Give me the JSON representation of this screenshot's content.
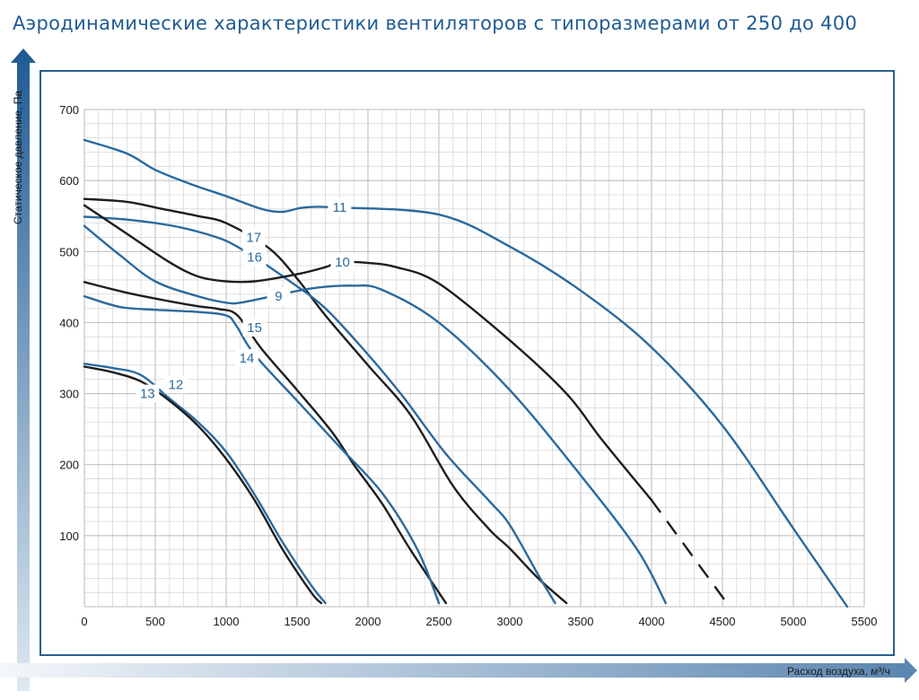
{
  "page": {
    "title": "Аэродинамические характеристики вентиляторов с типоразмерами от 250 до 400"
  },
  "chart_data": {
    "type": "line",
    "title": "Аэродинамические характеристики вентиляторов с типоразмерами от 250 до 400",
    "xlabel": "Расход воздуха, м³/ч",
    "ylabel": "Статическое давление, Па",
    "xlim": [
      0,
      5500
    ],
    "ylim": [
      0,
      700
    ],
    "x_ticks": [
      "0",
      "500",
      "1000",
      "1500",
      "2000",
      "2500",
      "3000",
      "3500",
      "4000",
      "4500",
      "5000",
      "5500"
    ],
    "y_ticks": [
      "100",
      "200",
      "300",
      "400",
      "500",
      "600",
      "700"
    ],
    "grid": true,
    "colors": {
      "blue": "#2a6a9e",
      "black": "#1e1e1e",
      "frame": "#2a5f8f"
    },
    "series": [
      {
        "name": "11",
        "color": "blue",
        "x": [
          0,
          300,
          500,
          750,
          1000,
          1250,
          1400,
          1550,
          1800,
          2500,
          3000,
          3500,
          4000,
          4500,
          5000,
          5380
        ],
        "y": [
          657,
          638,
          615,
          595,
          578,
          560,
          556,
          562,
          562,
          552,
          507,
          445,
          365,
          255,
          110,
          0
        ],
        "label_x": 1800,
        "label_y": 562
      },
      {
        "name": "17",
        "color": "black",
        "x": [
          0,
          300,
          550,
          800,
          1000,
          1300,
          1500,
          1700,
          2000,
          2300,
          2600,
          2850,
          3000,
          3200,
          3400
        ],
        "y": [
          574,
          570,
          560,
          550,
          540,
          505,
          462,
          410,
          340,
          270,
          170,
          110,
          82,
          40,
          5
        ],
        "label_x": 1195,
        "label_y": 520
      },
      {
        "name": "16",
        "color": "blue",
        "x": [
          0,
          300,
          600,
          800,
          1000,
          1200,
          1450,
          1700,
          2000,
          2250,
          2550,
          2850,
          3000,
          3200,
          3320
        ],
        "y": [
          549,
          545,
          537,
          528,
          515,
          492,
          458,
          420,
          355,
          295,
          215,
          150,
          115,
          45,
          5
        ],
        "label_x": 1200,
        "label_y": 492
      },
      {
        "name": "10",
        "color": "black",
        "x": [
          0,
          300,
          600,
          800,
          1000,
          1200,
          1500,
          1700,
          1800,
          2000,
          2200,
          2500,
          3000,
          3400,
          3650,
          4000
        ],
        "y": [
          565,
          525,
          485,
          465,
          458,
          458,
          468,
          478,
          485,
          484,
          478,
          455,
          375,
          300,
          235,
          150
        ],
        "label_x": 1820,
        "label_y": 485
      },
      {
        "name": "10",
        "color": "black",
        "dashed": true,
        "x": [
          4000,
          4550
        ],
        "y": [
          150,
          0
        ]
      },
      {
        "name": "9",
        "color": "blue",
        "x": [
          0,
          250,
          500,
          800,
          1000,
          1100,
          1300,
          1600,
          1900,
          2100,
          2500,
          3000,
          3500,
          3900,
          4100
        ],
        "y": [
          536,
          495,
          458,
          437,
          428,
          428,
          436,
          448,
          452,
          446,
          400,
          305,
          185,
          80,
          5
        ],
        "label_x": 1370,
        "label_y": 437
      },
      {
        "name": "15",
        "color": "black",
        "x": [
          0,
          300,
          600,
          800,
          950,
          1080,
          1250,
          1500,
          1750,
          1900,
          2100,
          2300,
          2550
        ],
        "y": [
          457,
          442,
          430,
          423,
          419,
          410,
          363,
          305,
          245,
          200,
          145,
          80,
          5
        ],
        "label_x": 1200,
        "label_y": 393
      },
      {
        "name": "14",
        "color": "blue",
        "x": [
          0,
          250,
          500,
          800,
          1000,
          1070,
          1200,
          1500,
          1800,
          2100,
          2350,
          2500
        ],
        "y": [
          437,
          422,
          418,
          415,
          410,
          396,
          355,
          290,
          225,
          160,
          80,
          5
        ],
        "label_x": 1145,
        "label_y": 350
      },
      {
        "name": "12",
        "color": "blue",
        "x": [
          0,
          200,
          400,
          600,
          800,
          1000,
          1200,
          1400,
          1600,
          1700
        ],
        "y": [
          342,
          336,
          326,
          293,
          260,
          218,
          158,
          90,
          30,
          5
        ],
        "label_x": 645,
        "label_y": 313
      },
      {
        "name": "13",
        "color": "black",
        "x": [
          0,
          200,
          400,
          600,
          800,
          1000,
          1200,
          1400,
          1600,
          1670
        ],
        "y": [
          338,
          330,
          317,
          290,
          255,
          208,
          150,
          80,
          20,
          5
        ],
        "label_x": 445,
        "label_y": 300
      }
    ]
  }
}
